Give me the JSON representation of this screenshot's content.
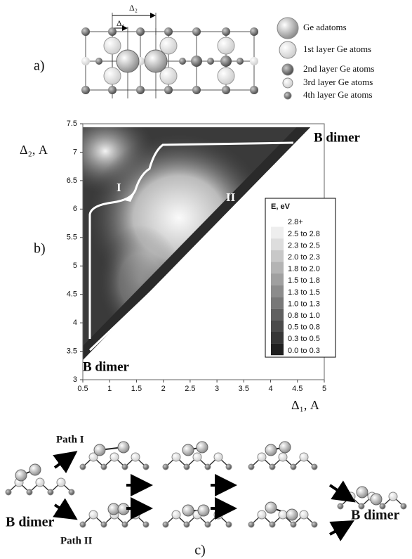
{
  "panel_a": {
    "label": "a)",
    "delta_1": "Δ₁",
    "delta_2": "Δ₂",
    "legend": [
      "Ge adatoms",
      "1st layer Ge atoms",
      "2nd layer Ge atoms",
      "3rd layer Ge atoms",
      "4th layer Ge atoms"
    ]
  },
  "chart_data": {
    "type": "heatmap",
    "panel_label": "b)",
    "x_label": "Δ₁, A",
    "y_label": "Δ₂, A",
    "xlim": [
      0.5,
      5
    ],
    "ylim": [
      3,
      7.5
    ],
    "xticks": [
      0.5,
      1,
      1.5,
      2,
      2.5,
      3,
      3.5,
      4,
      4.5,
      5
    ],
    "yticks": [
      3,
      3.5,
      4,
      4.5,
      5,
      5.5,
      6,
      6.5,
      7,
      7.5
    ],
    "annotations": [
      "I",
      "II",
      "B dimer",
      "B dimer"
    ],
    "legend": {
      "title": "E, eV",
      "entries": [
        {
          "label": "2.8+",
          "color": "#ffffff"
        },
        {
          "label": "2.5 to 2.8",
          "color": "#eeeeee"
        },
        {
          "label": "2.3 to 2.5",
          "color": "#dddddd"
        },
        {
          "label": "2.0 to 2.3",
          "color": "#c8c8c8"
        },
        {
          "label": "1.8 to 2.0",
          "color": "#b4b4b4"
        },
        {
          "label": "1.5 to 1.8",
          "color": "#a0a0a0"
        },
        {
          "label": "1.3 to 1.5",
          "color": "#8c8c8c"
        },
        {
          "label": "1.0 to 1.3",
          "color": "#787878"
        },
        {
          "label": "0.8 to 1.0",
          "color": "#606060"
        },
        {
          "label": "0.5 to 0.8",
          "color": "#4a4a4a"
        },
        {
          "label": "0.3 to 0.5",
          "color": "#363636"
        },
        {
          "label": "0.0 to 0.3",
          "color": "#202020"
        }
      ]
    }
  },
  "panel_c": {
    "label": "c)",
    "path_1": "Path I",
    "path_2": "Path II",
    "start": "B dimer",
    "end": "B dimer"
  }
}
